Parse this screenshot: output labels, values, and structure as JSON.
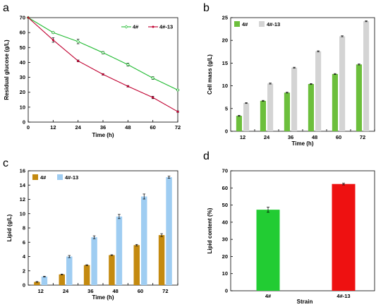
{
  "chart_data": [
    {
      "panel": "a",
      "type": "line",
      "xlabel": "Time (h)",
      "ylabel": "Residual glucose (g/L)",
      "xlim": [
        0,
        72
      ],
      "ylim": [
        0,
        70
      ],
      "x_ticks": [
        0,
        12,
        24,
        36,
        48,
        60,
        72
      ],
      "y_ticks": [
        0,
        10,
        20,
        30,
        40,
        50,
        60,
        70
      ],
      "grid": false,
      "legend": "top-right",
      "x": [
        0,
        12,
        24,
        36,
        48,
        60,
        72
      ],
      "series": [
        {
          "name": "4#",
          "color": "#22bb33",
          "values": [
            70,
            60,
            54,
            46.5,
            38.5,
            29.5,
            21.5
          ],
          "errors": [
            0,
            0.5,
            1.5,
            0.8,
            1.0,
            0.9,
            0.5
          ]
        },
        {
          "name": "4#-13",
          "color": "#c00030",
          "values": [
            70,
            55,
            41,
            32,
            24,
            16.5,
            7
          ],
          "errors": [
            0,
            1.5,
            0.6,
            0.5,
            0.5,
            0.8,
            0.5
          ]
        }
      ]
    },
    {
      "panel": "b",
      "type": "bar",
      "xlabel": "Time (h)",
      "ylabel": "Cell mass (g/L)",
      "ylim": [
        0,
        25
      ],
      "y_ticks": [
        0,
        5,
        10,
        15,
        20,
        25
      ],
      "grid": false,
      "legend": "top-left",
      "categories": [
        "12",
        "24",
        "36",
        "48",
        "60",
        "72"
      ],
      "series": [
        {
          "name": "4#",
          "color": "#6cbf3c",
          "values": [
            3.4,
            6.7,
            8.5,
            10.4,
            12.6,
            14.7
          ],
          "errors": [
            0.1,
            0.1,
            0.1,
            0.1,
            0.1,
            0.1
          ]
        },
        {
          "name": "4#-13",
          "color": "#d4d4d4",
          "values": [
            6.2,
            10.5,
            14.0,
            17.6,
            20.9,
            24.2
          ],
          "errors": [
            0.1,
            0.1,
            0.1,
            0.1,
            0.1,
            0.1
          ]
        }
      ]
    },
    {
      "panel": "c",
      "type": "bar",
      "xlabel": "Time (h)",
      "ylabel": "Lipid (g/L)",
      "ylim": [
        0,
        16
      ],
      "y_ticks": [
        0,
        2,
        4,
        6,
        8,
        10,
        12,
        14,
        16
      ],
      "grid": false,
      "legend": "top-left",
      "categories": [
        "12",
        "24",
        "36",
        "48",
        "60",
        "72"
      ],
      "series": [
        {
          "name": "4#",
          "color": "#c48a10",
          "values": [
            0.45,
            1.5,
            2.8,
            4.2,
            5.6,
            7.0
          ],
          "errors": [
            0.05,
            0.05,
            0.05,
            0.05,
            0.1,
            0.2
          ]
        },
        {
          "name": "4#-13",
          "color": "#9fcdf2",
          "values": [
            1.2,
            4.0,
            6.7,
            9.6,
            12.4,
            15.1
          ],
          "errors": [
            0.05,
            0.15,
            0.2,
            0.3,
            0.35,
            0.15
          ]
        }
      ]
    },
    {
      "panel": "d",
      "type": "bar",
      "xlabel": "Strain",
      "ylabel": "Lipid content (%)",
      "ylim": [
        0,
        70
      ],
      "y_ticks": [
        0,
        10,
        20,
        30,
        40,
        50,
        60,
        70
      ],
      "grid": false,
      "categories": [
        "4#",
        "4#-13"
      ],
      "values": [
        47.3,
        62.3
      ],
      "errors": [
        1.5,
        0.5
      ],
      "colors": [
        "#22cc33",
        "#ee1111"
      ]
    }
  ]
}
